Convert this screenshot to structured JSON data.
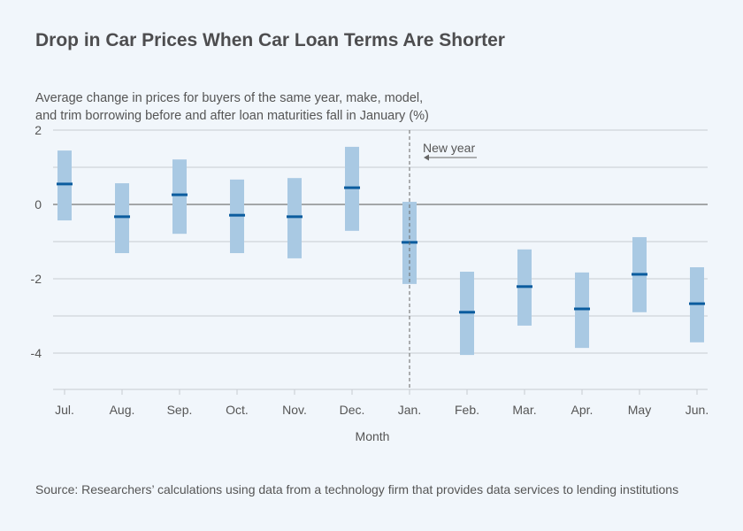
{
  "title": "Drop in Car Prices When Car Loan Terms Are Shorter",
  "subtitle_line1": "Average change in prices for buyers of the same year, make, model,",
  "subtitle_line2": "and trim borrowing before and after loan maturities fall in January (%)",
  "source": "Source: Researchers’ calculations using data from a technology firm that provides data services to lending institutions",
  "colors": {
    "range": "#a9c9e3",
    "point": "#0b5c9e",
    "grid": "#c8ccd2",
    "zero": "#777777"
  },
  "chart_data": {
    "type": "range-point",
    "title": "Drop in Car Prices When Car Loan Terms Are Shorter",
    "xlabel": "Month",
    "ylabel": "",
    "ylim": [
      -5,
      2
    ],
    "yticks": [
      2,
      0,
      -2,
      -4
    ],
    "yticklabels": [
      "2",
      "0",
      "-2",
      "-4"
    ],
    "gridlines": [
      2,
      1,
      0,
      -1,
      -2,
      -3,
      -4
    ],
    "categories": [
      "Jul.",
      "Aug.",
      "Sep.",
      "Oct.",
      "Nov.",
      "Dec.",
      "Jan.",
      "Feb.",
      "Mar.",
      "Apr.",
      "May",
      "Jun."
    ],
    "estimate": [
      0.55,
      -0.33,
      0.26,
      -0.29,
      -0.33,
      0.45,
      -1.02,
      -2.9,
      -2.21,
      -2.81,
      -1.88,
      -2.67
    ],
    "upper": [
      1.45,
      0.57,
      1.21,
      0.67,
      0.71,
      1.55,
      0.07,
      -1.81,
      -1.21,
      -1.83,
      -0.88,
      -1.69
    ],
    "lower": [
      -0.43,
      -1.31,
      -0.79,
      -1.31,
      -1.45,
      -0.71,
      -2.14,
      -4.05,
      -3.26,
      -3.86,
      -2.9,
      -3.71
    ],
    "annotation": {
      "text": "New year",
      "at_category": "Jan."
    }
  }
}
